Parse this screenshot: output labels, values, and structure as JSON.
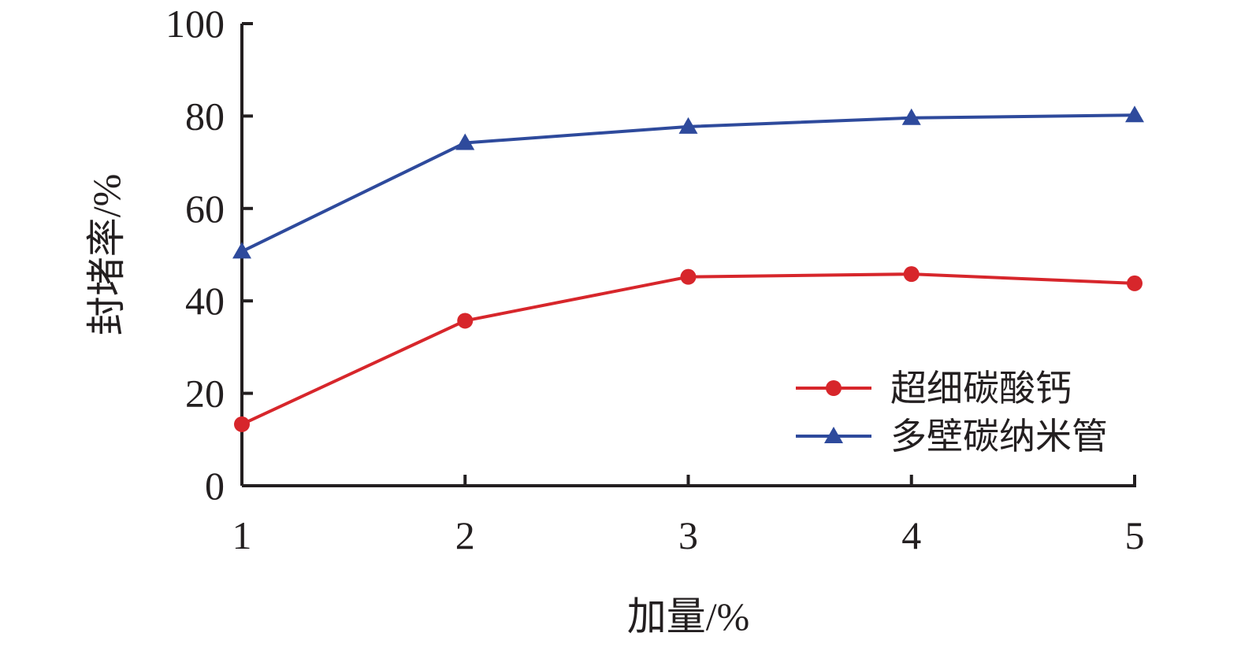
{
  "chart_data": {
    "type": "line",
    "title": "",
    "xlabel": "加量/%",
    "ylabel": "封堵率/%",
    "x": [
      1,
      2,
      3,
      4,
      5
    ],
    "xlim": [
      1,
      5
    ],
    "ylim": [
      0,
      100
    ],
    "xticks": [
      "1",
      "2",
      "3",
      "4",
      "5"
    ],
    "yticks": [
      "0",
      "20",
      "40",
      "60",
      "80",
      "100"
    ],
    "grid": false,
    "legend_position": "bottom-right",
    "series": [
      {
        "name": "超细碳酸钙",
        "values": [
          13.3,
          35.7,
          45.2,
          45.8,
          43.8
        ],
        "color": "#d7262b",
        "marker": "circle"
      },
      {
        "name": "多壁碳纳米管",
        "values": [
          50.7,
          74.2,
          77.7,
          79.6,
          80.2
        ],
        "color": "#2e4a9c",
        "marker": "triangle"
      }
    ]
  }
}
